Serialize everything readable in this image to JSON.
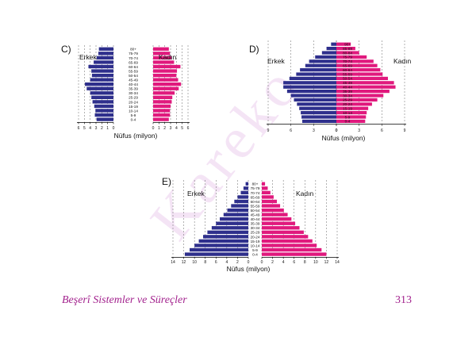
{
  "watermark": "Kareko",
  "footer": {
    "title": "Beşerî Sistemler ve Süreçler",
    "page_number": "313"
  },
  "colors": {
    "male": "#2e2f8c",
    "female": "#e0197d",
    "grid": "#666666",
    "accent": "#a3238e"
  },
  "chart_data": [
    {
      "type": "bar",
      "subtype": "population-pyramid",
      "title": "C)",
      "xlabel": "Nüfus (milyon)",
      "series": [
        {
          "name": "Erkek",
          "values": [
            2.5,
            2.6,
            2.9,
            3.4,
            4.3,
            3.8,
            3.7,
            4.0,
            4.9,
            4.6,
            4.0,
            3.8,
            3.6,
            3.3,
            3.1,
            3.2,
            2.9
          ]
        },
        {
          "name": "Kadın",
          "values": [
            2.7,
            2.9,
            3.2,
            3.6,
            4.7,
            4.1,
            4.0,
            4.3,
            4.8,
            4.4,
            3.7,
            3.3,
            3.2,
            3.0,
            2.9,
            2.9,
            2.7
          ]
        }
      ],
      "categories": [
        "80+",
        "75-79",
        "70-74",
        "65-69",
        "60-64",
        "55-59",
        "50-54",
        "45-49",
        "40-44",
        "35-39",
        "30-34",
        "25-29",
        "20-24",
        "15-19",
        "10-14",
        "5-9",
        "0-4"
      ],
      "xticks_left": [
        "6",
        "5",
        "4",
        "3",
        "2",
        "1",
        "0"
      ],
      "xticks_right": [
        "0",
        "1",
        "2",
        "3",
        "4",
        "5",
        "6"
      ],
      "xlim": [
        0,
        6
      ],
      "grid": true
    },
    {
      "type": "bar",
      "subtype": "population-pyramid",
      "title": "D)",
      "xlabel": "Nüfus (milyon)",
      "series": [
        {
          "name": "Erkek",
          "values": [
            0.7,
            1.3,
            1.9,
            2.8,
            3.6,
            4.1,
            4.8,
            5.3,
            6.2,
            7.0,
            7.0,
            6.5,
            6.0,
            5.6,
            5.2,
            4.9,
            4.7,
            4.6,
            4.5
          ]
        },
        {
          "name": "Kadın",
          "values": [
            1.9,
            2.5,
            3.0,
            4.0,
            4.9,
            5.4,
            5.8,
            6.1,
            6.8,
            7.6,
            7.8,
            7.0,
            6.2,
            5.4,
            4.7,
            4.2,
            4.0,
            3.9,
            3.8
          ]
        }
      ],
      "categories": [
        "90+",
        "85-89",
        "80-84",
        "75-79",
        "70-74",
        "65-69",
        "60-64",
        "55-59",
        "50-54",
        "45-49",
        "40-44",
        "35-39",
        "30-34",
        "25-29",
        "20-24",
        "15-19",
        "10-14",
        "5-9",
        "0-4"
      ],
      "xticks_left": [
        "9",
        "6",
        "3",
        "0"
      ],
      "xticks_right": [
        "0",
        "3",
        "6",
        "9"
      ],
      "xlim": [
        0,
        9
      ],
      "grid": true
    },
    {
      "type": "bar",
      "subtype": "population-pyramid",
      "title": "E)",
      "xlabel": "Nüfus (milyon)",
      "series": [
        {
          "name": "Erkek",
          "values": [
            0.5,
            0.9,
            1.4,
            2.0,
            2.6,
            3.2,
            3.9,
            4.6,
            5.3,
            6.0,
            6.8,
            7.6,
            8.4,
            9.2,
            10.0,
            10.9,
            11.8
          ]
        },
        {
          "name": "Kadın",
          "values": [
            0.6,
            1.1,
            1.6,
            2.2,
            2.8,
            3.4,
            4.1,
            4.8,
            5.5,
            6.2,
            7.0,
            7.8,
            8.6,
            9.4,
            10.2,
            11.1,
            12.0
          ]
        }
      ],
      "categories": [
        "80+",
        "75-79",
        "70-74",
        "65-69",
        "60-64",
        "55-59",
        "50-54",
        "45-49",
        "40-44",
        "35-39",
        "30-34",
        "25-29",
        "20-24",
        "15-19",
        "10-14",
        "5-9",
        "0-4"
      ],
      "xticks_left": [
        "14",
        "12",
        "10",
        "8",
        "6",
        "4",
        "2",
        "0"
      ],
      "xticks_right": [
        "0",
        "2",
        "4",
        "6",
        "8",
        "10",
        "12",
        "14"
      ],
      "xlim": [
        0,
        14
      ],
      "grid": true
    }
  ]
}
